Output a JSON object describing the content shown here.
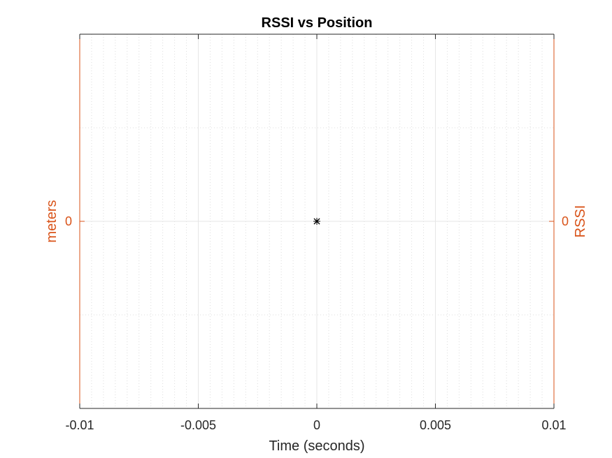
{
  "chart_data": {
    "type": "line",
    "title": "RSSI vs Position",
    "xlabel": "Time (seconds)",
    "ylabel_left": "meters",
    "ylabel_right": "RSSI",
    "xlim": [
      -0.01,
      0.01
    ],
    "x_ticks": [
      -0.01,
      -0.005,
      0,
      0.005,
      0.01
    ],
    "x_tick_labels": [
      "-0.01",
      "-0.005",
      "0",
      "0.005",
      "0.01"
    ],
    "y_left_ticks": [
      0
    ],
    "y_left_tick_labels": [
      "0"
    ],
    "y_right_ticks": [
      0
    ],
    "y_right_tick_labels": [
      "0"
    ],
    "grid": true,
    "minor_grid": true,
    "series": [
      {
        "axis": "left",
        "marker": "x",
        "x": [
          0
        ],
        "y": [
          0
        ]
      },
      {
        "axis": "right",
        "marker": "*",
        "x": [
          0
        ],
        "y": [
          0
        ]
      }
    ]
  },
  "colors": {
    "y_axes": "#D95319",
    "markers": "#000000",
    "text": "#262626",
    "grid": "#dcdcdc"
  }
}
